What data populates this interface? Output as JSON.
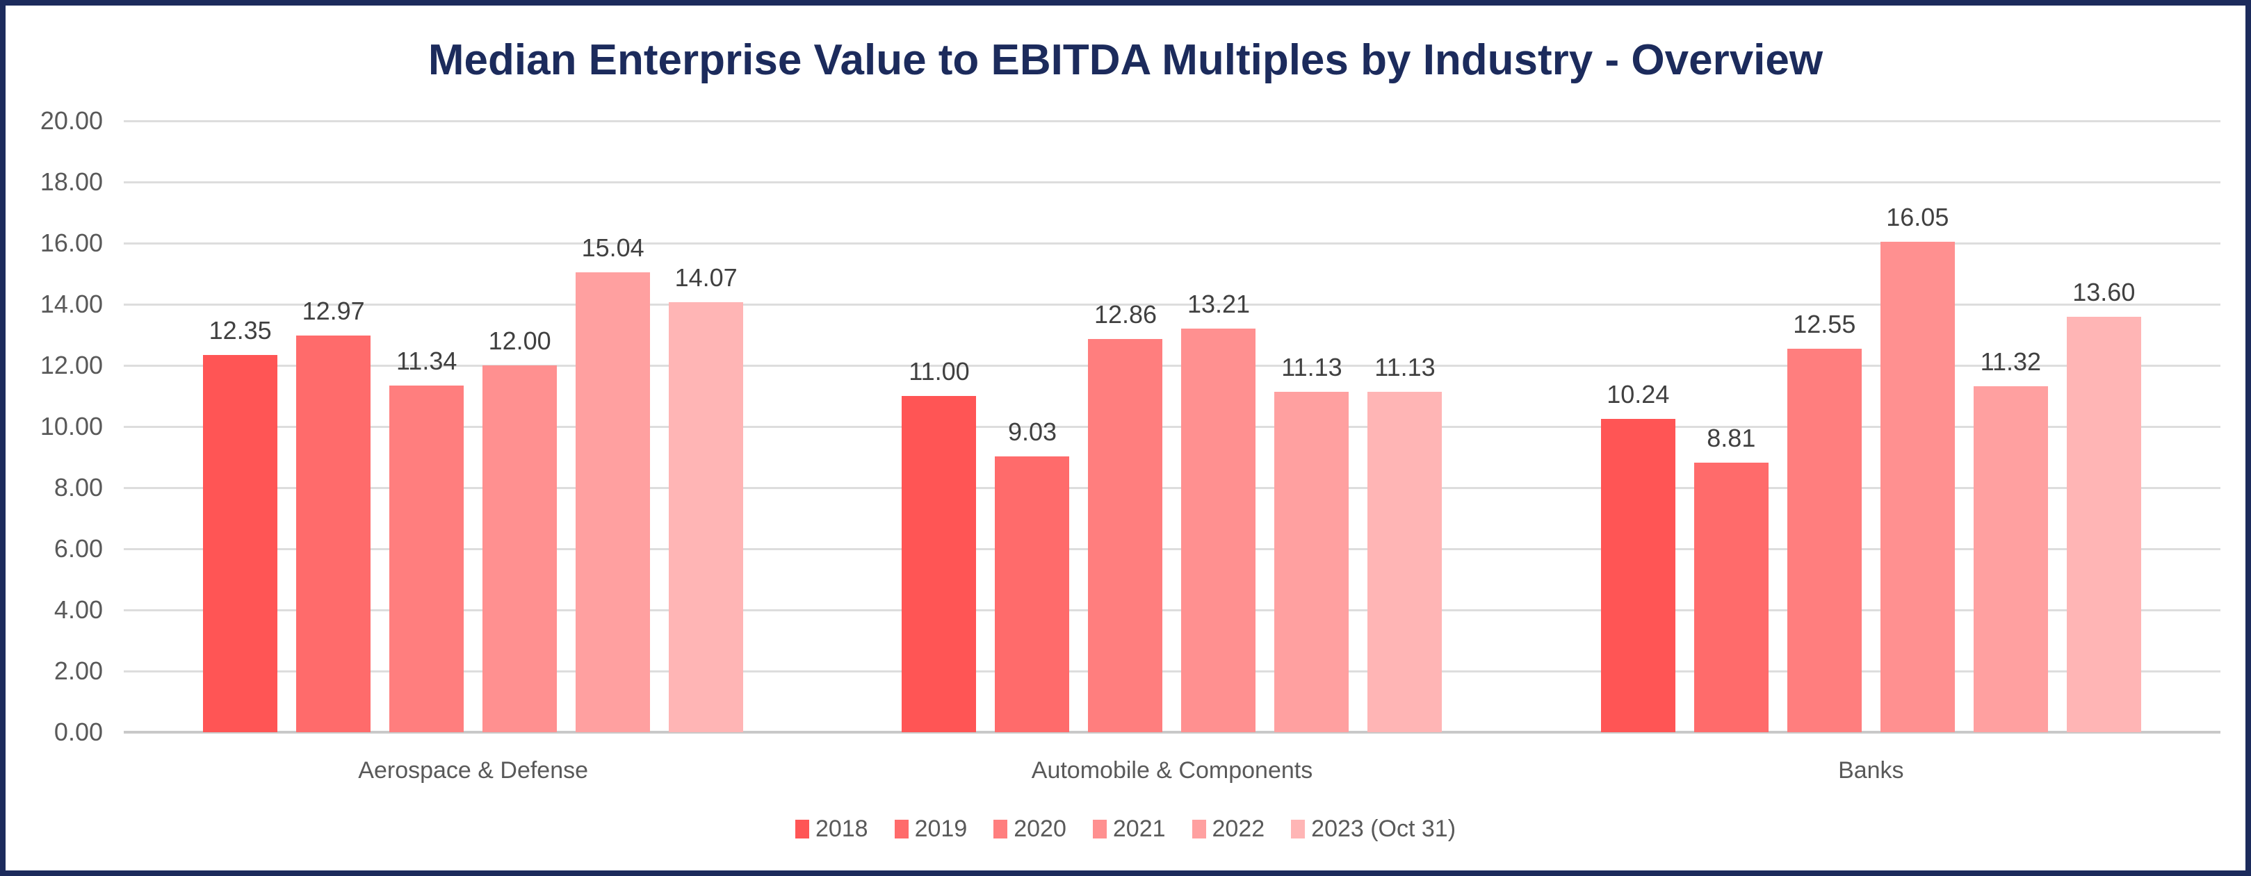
{
  "chart_data": {
    "type": "bar",
    "title": "Median Enterprise Value to EBITDA Multiples by Industry - Overview",
    "categories": [
      "Aerospace & Defense",
      "Automobile & Components",
      "Banks"
    ],
    "series": [
      {
        "name": "2018",
        "color": "#FF5555",
        "values": [
          12.35,
          11.0,
          10.24
        ]
      },
      {
        "name": "2019",
        "color": "#FF6B6B",
        "values": [
          12.97,
          9.03,
          8.81
        ]
      },
      {
        "name": "2020",
        "color": "#FF7E7E",
        "values": [
          11.34,
          12.86,
          12.55
        ]
      },
      {
        "name": "2021",
        "color": "#FF9090",
        "values": [
          12.0,
          13.21,
          16.05
        ]
      },
      {
        "name": "2022",
        "color": "#FFA0A0",
        "values": [
          15.04,
          11.13,
          11.32
        ]
      },
      {
        "name": "2023 (Oct 31)",
        "color": "#FFB5B5",
        "values": [
          14.07,
          11.13,
          13.6
        ]
      }
    ],
    "y_axis": {
      "min": 0,
      "max": 20,
      "step": 2,
      "tick_labels": [
        "0.00",
        "2.00",
        "4.00",
        "6.00",
        "8.00",
        "10.00",
        "12.00",
        "14.00",
        "16.00",
        "18.00",
        "20.00"
      ]
    },
    "grid": true,
    "legend_position": "bottom",
    "data_labels": "above bars, two decimals",
    "colors": {
      "border_navy": "#1C2B5C",
      "title_navy": "#1C2B5C",
      "axis_text": "#595959",
      "data_label_text": "#404040",
      "gridline": "#DDDDDD",
      "axis_line": "#C9C9C9",
      "background": "#FFFFFF"
    }
  }
}
